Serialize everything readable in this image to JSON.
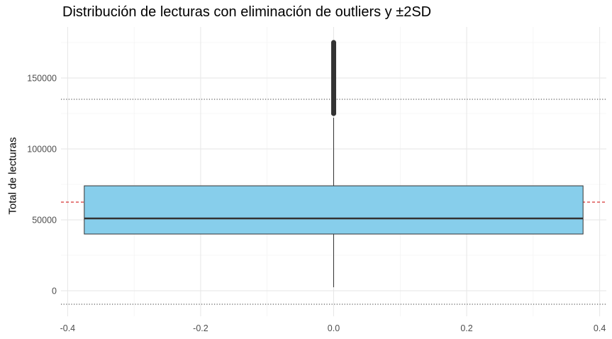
{
  "chart_data": {
    "type": "boxplot",
    "title": "Distribución de lecturas con eliminación de outliers y ±2SD",
    "xlabel": "",
    "ylabel": "Total de lecturas",
    "xlim": [
      -0.41,
      0.41
    ],
    "ylim": [
      -18000,
      186000
    ],
    "x_ticks": [
      -0.4,
      -0.2,
      0.0,
      0.2,
      0.4
    ],
    "x_tick_labels": [
      "-0.4",
      "-0.2",
      "0.0",
      "0.2",
      "0.4"
    ],
    "y_ticks": [
      0,
      50000,
      100000,
      150000
    ],
    "y_tick_labels": [
      "0",
      "50000",
      "100000",
      "150000"
    ],
    "grid": true,
    "box": {
      "x_center": 0.0,
      "x_min": -0.375,
      "x_max": 0.375,
      "q1": 40000,
      "median": 51000,
      "q3": 74000,
      "whisker_low": 2500,
      "whisker_high": 122000,
      "outliers_from": 125000,
      "outliers_to": 175000,
      "fill": "#87CEEB"
    },
    "reference_lines": [
      {
        "label": "mean",
        "value": 62500,
        "style": "dashed",
        "color": "#cc0000"
      },
      {
        "label": "+2SD",
        "value": 135000,
        "style": "dotted",
        "color": "#333333"
      },
      {
        "label": "-2SD",
        "value": -9500,
        "style": "dotted",
        "color": "#333333"
      }
    ]
  }
}
